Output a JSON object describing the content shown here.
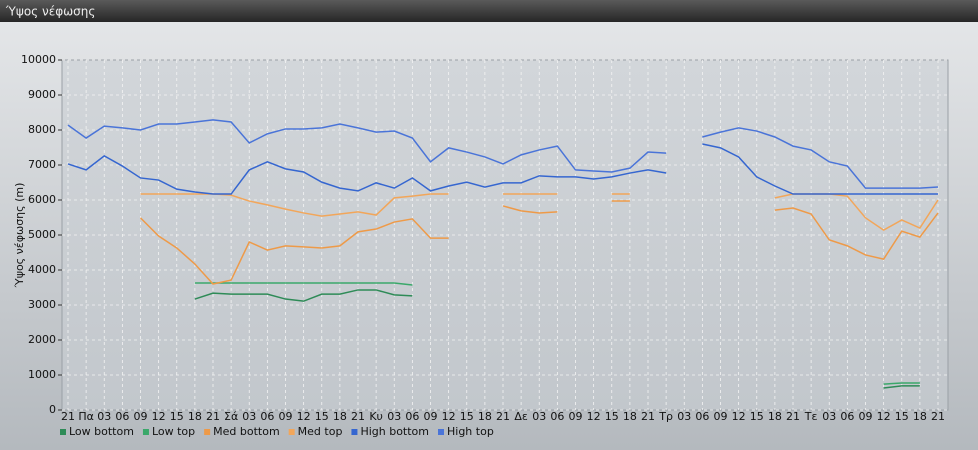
{
  "chart_data": {
    "type": "line",
    "title": "Ύψος νέφωσης",
    "y_label": "Ύψος νέφωσης (m)",
    "categories": [
      "21",
      "Πα",
      "03",
      "06",
      "09",
      "12",
      "15",
      "18",
      "21",
      "Σά",
      "03",
      "06",
      "09",
      "12",
      "15",
      "18",
      "21",
      "Κυ",
      "03",
      "06",
      "09",
      "12",
      "15",
      "18",
      "21",
      "Δε",
      "03",
      "06",
      "09",
      "12",
      "15",
      "18",
      "21",
      "Τρ",
      "03",
      "06",
      "09",
      "12",
      "15",
      "18",
      "21",
      "Τε",
      "03",
      "06",
      "09",
      "12",
      "15",
      "18",
      "21"
    ],
    "ylim": [
      0,
      10000
    ],
    "yticks": [
      0,
      1000,
      2000,
      3000,
      4000,
      5000,
      6000,
      7000,
      8000,
      9000,
      10000
    ],
    "grid": true,
    "series": [
      {
        "name": "Low bottom",
        "color": "#2e8b57",
        "values": [
          null,
          null,
          null,
          null,
          null,
          null,
          null,
          3170,
          3340,
          3310,
          3310,
          3310,
          3170,
          3110,
          3310,
          3310,
          3430,
          3430,
          3290,
          3260,
          null,
          null,
          null,
          null,
          null,
          null,
          null,
          null,
          null,
          null,
          null,
          null,
          null,
          null,
          null,
          null,
          null,
          null,
          null,
          null,
          null,
          null,
          null,
          null,
          null,
          630,
          690,
          690,
          null
        ]
      },
      {
        "name": "Low top",
        "color": "#3aa86a",
        "values": [
          null,
          null,
          null,
          null,
          null,
          null,
          null,
          3630,
          3630,
          3630,
          3630,
          3630,
          3630,
          3630,
          3630,
          3630,
          3630,
          3630,
          3630,
          3570,
          null,
          null,
          null,
          null,
          null,
          null,
          null,
          null,
          null,
          null,
          null,
          null,
          null,
          null,
          null,
          null,
          null,
          null,
          null,
          null,
          null,
          null,
          null,
          null,
          null,
          740,
          770,
          770,
          null
        ]
      },
      {
        "name": "Med bottom",
        "color": "#ee9a48",
        "values": [
          null,
          null,
          null,
          null,
          5490,
          4970,
          4630,
          4170,
          3600,
          3710,
          4800,
          4570,
          4690,
          4660,
          4630,
          4690,
          5090,
          5170,
          5370,
          5460,
          4910,
          4910,
          null,
          null,
          5830,
          5690,
          5630,
          5660,
          null,
          null,
          5970,
          5970,
          null,
          null,
          null,
          null,
          null,
          null,
          null,
          5710,
          5770,
          5600,
          4860,
          4690,
          4430,
          4310,
          5110,
          4940,
          5630
        ]
      },
      {
        "name": "Med top",
        "color": "#f2a65a",
        "values": [
          null,
          null,
          null,
          null,
          6170,
          6170,
          6170,
          6170,
          6170,
          6140,
          5970,
          5860,
          5740,
          5630,
          5540,
          5600,
          5660,
          5570,
          6060,
          6110,
          6170,
          6170,
          null,
          null,
          6170,
          6170,
          6170,
          6170,
          null,
          null,
          6170,
          6170,
          null,
          null,
          null,
          null,
          null,
          null,
          null,
          6060,
          6170,
          6170,
          6170,
          6110,
          5490,
          5140,
          5430,
          5200,
          6000
        ]
      },
      {
        "name": "High bottom",
        "color": "#3566d0",
        "values": [
          7030,
          6860,
          7260,
          6970,
          6630,
          6570,
          6310,
          6230,
          6170,
          6170,
          6860,
          7090,
          6890,
          6800,
          6510,
          6340,
          6260,
          6490,
          6340,
          6630,
          6260,
          6400,
          6510,
          6370,
          6490,
          6490,
          6690,
          6660,
          6660,
          6600,
          6660,
          6770,
          6860,
          6770,
          null,
          7600,
          7490,
          7230,
          6660,
          6400,
          6170,
          6170,
          6170,
          6170,
          6170,
          6170,
          6170,
          6170,
          6170
        ]
      },
      {
        "name": "High top",
        "color": "#4a74d8",
        "values": [
          8140,
          7770,
          8110,
          8060,
          8000,
          8170,
          8170,
          8230,
          8290,
          8230,
          7630,
          7890,
          8030,
          8030,
          8060,
          8170,
          8060,
          7940,
          7970,
          7770,
          7090,
          7490,
          7370,
          7230,
          7030,
          7290,
          7430,
          7540,
          6860,
          6830,
          6800,
          6910,
          7370,
          7340,
          null,
          7800,
          7940,
          8060,
          7970,
          7800,
          7540,
          7430,
          7090,
          6970,
          6340,
          6340,
          6340,
          6340,
          6370
        ]
      }
    ]
  }
}
